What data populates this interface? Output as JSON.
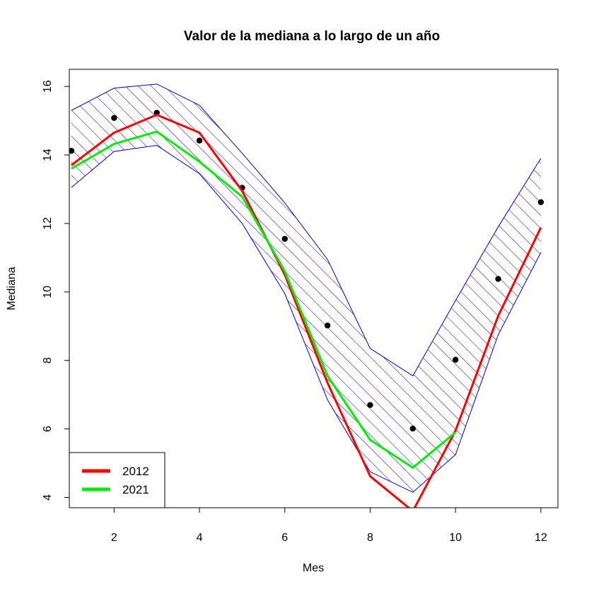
{
  "chart_data": {
    "type": "line",
    "title": "Valor de la mediana a lo largo de un año",
    "xlabel": "Mes",
    "ylabel": "Mediana",
    "xlim": [
      0.95,
      12.4
    ],
    "ylim": [
      3.7,
      16.5
    ],
    "xticks": [
      2,
      4,
      6,
      8,
      10,
      12
    ],
    "yticks": [
      4,
      6,
      8,
      10,
      12,
      14,
      16
    ],
    "grid": false,
    "legend_position": "bottom-left",
    "band": {
      "x": [
        1,
        2,
        3,
        4,
        5,
        6,
        7,
        8,
        9,
        10,
        11,
        12
      ],
      "upper": [
        15.3,
        15.95,
        16.07,
        15.45,
        14.05,
        12.6,
        10.95,
        8.35,
        7.55,
        9.75,
        11.9,
        13.9
      ],
      "lower": [
        13.05,
        14.1,
        14.28,
        13.45,
        12.0,
        9.95,
        6.85,
        4.75,
        4.15,
        5.25,
        8.75,
        11.15
      ],
      "color": "#0000cc"
    },
    "points": {
      "x": [
        1,
        2,
        3,
        4,
        5,
        6,
        7,
        8,
        9,
        10,
        11,
        12
      ],
      "y": [
        14.12,
        15.08,
        15.23,
        14.42,
        13.04,
        11.55,
        9.02,
        6.7,
        6.01,
        8.02,
        10.38,
        12.62
      ],
      "color": "#000000"
    },
    "series": [
      {
        "name": "2012",
        "color": "#ff0000",
        "x": [
          1,
          2,
          3,
          4,
          5,
          6,
          7,
          8,
          9,
          10,
          11,
          12
        ],
        "y": [
          13.7,
          14.65,
          15.17,
          14.65,
          12.95,
          10.5,
          7.35,
          4.62,
          3.6,
          5.95,
          9.3,
          11.88
        ]
      },
      {
        "name": "2021",
        "color": "#00ee00",
        "x": [
          1,
          2,
          3,
          4,
          5,
          6,
          7,
          8,
          9,
          10
        ],
        "y": [
          13.6,
          14.32,
          14.68,
          13.8,
          12.78,
          10.6,
          7.55,
          5.68,
          4.87,
          5.9
        ]
      }
    ]
  }
}
